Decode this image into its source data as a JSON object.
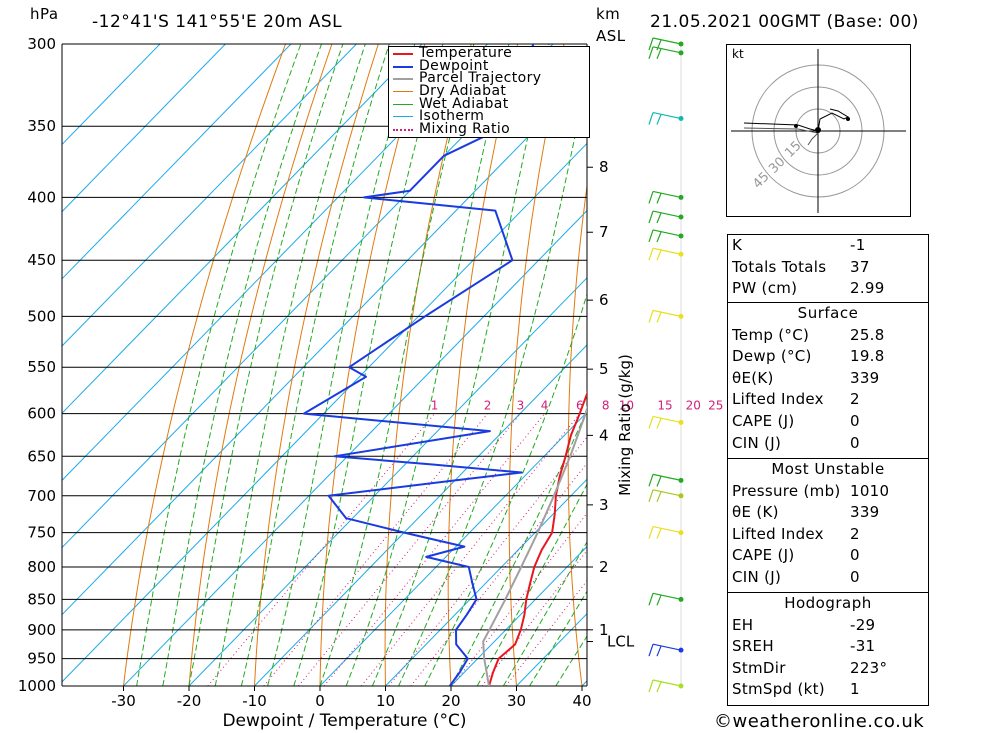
{
  "header": {
    "location": "-12°41'S 141°55'E 20m ASL",
    "datetime": "21.05.2021 00GMT (Base: 00)",
    "left_unit": "hPa",
    "right_unit_km": "km",
    "right_unit_asl": "ASL"
  },
  "footer": {
    "credit": "©weatheronline.co.uk"
  },
  "chart_data": {
    "type": "skew-t log-p",
    "xlabel": "Dewpoint / Temperature (°C)",
    "ylabel_right": "Mixing Ratio (g/kg)",
    "x_ticks": [
      -30,
      -20,
      -10,
      0,
      10,
      20,
      30,
      40
    ],
    "xlim": [
      -40,
      40
    ],
    "pressure_levels": [
      300,
      350,
      400,
      450,
      500,
      550,
      600,
      650,
      700,
      750,
      800,
      850,
      900,
      950,
      1000
    ],
    "ylim": [
      1000,
      300
    ],
    "height_ticks": [
      {
        "label": "8",
        "p": 378
      },
      {
        "label": "7",
        "p": 427
      },
      {
        "label": "6",
        "p": 485
      },
      {
        "label": "5",
        "p": 552
      },
      {
        "label": "4",
        "p": 625
      },
      {
        "label": "3",
        "p": 712
      },
      {
        "label": "2",
        "p": 800
      },
      {
        "label": "1",
        "p": 900
      }
    ],
    "lcl_label": "LCL",
    "lcl_p": 920,
    "mixing_ratio_labels": [
      "1",
      "2",
      "3",
      "4",
      "6",
      "8",
      "10",
      "15",
      "20",
      "25"
    ],
    "series": [
      {
        "name": "Temperature",
        "color": "#e8171f",
        "points": [
          [
            1000,
            25.8
          ],
          [
            975,
            24.4
          ],
          [
            950,
            23.2
          ],
          [
            925,
            23.6
          ],
          [
            900,
            22.3
          ],
          [
            875,
            20.6
          ],
          [
            850,
            18.6
          ],
          [
            825,
            16.8
          ],
          [
            800,
            15.0
          ],
          [
            775,
            13.6
          ],
          [
            750,
            12.6
          ],
          [
            725,
            10.3
          ],
          [
            700,
            7.7
          ],
          [
            675,
            5.4
          ],
          [
            650,
            3.3
          ],
          [
            625,
            1.0
          ],
          [
            600,
            -0.9
          ],
          [
            575,
            -3.0
          ],
          [
            550,
            -5.2
          ],
          [
            525,
            -7.3
          ],
          [
            500,
            -10.6
          ],
          [
            475,
            -14.5
          ],
          [
            450,
            -18.5
          ],
          [
            425,
            -23.0
          ],
          [
            400,
            -26.8
          ],
          [
            395,
            -26.9
          ],
          [
            390,
            -28.5
          ],
          [
            370,
            -32.5
          ],
          [
            350,
            -36.5
          ]
        ]
      },
      {
        "name": "Dewpoint",
        "color": "#1a3be0",
        "points": [
          [
            1000,
            19.8
          ],
          [
            975,
            19.3
          ],
          [
            950,
            18.5
          ],
          [
            925,
            14.6
          ],
          [
            900,
            12.4
          ],
          [
            875,
            11.8
          ],
          [
            850,
            11.0
          ],
          [
            825,
            8.0
          ],
          [
            800,
            5.0
          ],
          [
            785,
            -3.0
          ],
          [
            770,
            1.3
          ],
          [
            750,
            -10.0
          ],
          [
            730,
            -21.0
          ],
          [
            700,
            -27.0
          ],
          [
            680,
            -10.0
          ],
          [
            670,
            -1.0
          ],
          [
            660,
            -16.0
          ],
          [
            650,
            -32.0
          ],
          [
            620,
            -12.0
          ],
          [
            600,
            -43.0
          ],
          [
            560,
            -39.0
          ],
          [
            550,
            -43.0
          ],
          [
            500,
            -39.0
          ],
          [
            450,
            -34.0
          ],
          [
            410,
            -44.0
          ],
          [
            400,
            -66.0
          ],
          [
            395,
            -60.0
          ],
          [
            370,
            -60.0
          ],
          [
            350,
            -55.0
          ],
          [
            300,
            -63.0
          ]
        ]
      },
      {
        "name": "Parcel Trajectory",
        "color": "#a0a0a0",
        "points": [
          [
            1000,
            25.8
          ],
          [
            950,
            21.0
          ],
          [
            920,
            18.3
          ],
          [
            900,
            17.5
          ],
          [
            850,
            15.4
          ],
          [
            800,
            13.0
          ],
          [
            750,
            10.4
          ],
          [
            700,
            7.4
          ],
          [
            650,
            4.0
          ],
          [
            600,
            0.0
          ],
          [
            550,
            -4.8
          ],
          [
            500,
            -10.5
          ],
          [
            450,
            -17.5
          ],
          [
            400,
            -26.0
          ],
          [
            350,
            -36.5
          ],
          [
            310,
            -47.5
          ]
        ]
      }
    ],
    "background_lines": [
      "Dry Adiabat",
      "Wet Adiabat",
      "Isotherm",
      "Mixing Ratio"
    ]
  },
  "legend": {
    "items": [
      {
        "label": "Temperature",
        "color": "#e8171f",
        "style": "solid"
      },
      {
        "label": "Dewpoint",
        "color": "#1a3be0",
        "style": "solid"
      },
      {
        "label": "Parcel Trajectory",
        "color": "#a0a0a0",
        "style": "solid"
      },
      {
        "label": "Dry Adiabat",
        "color": "#e07a10",
        "style": "solid"
      },
      {
        "label": "Wet Adiabat",
        "color": "#22aa22",
        "style": "solid"
      },
      {
        "label": "Isotherm",
        "color": "#1eaaea",
        "style": "solid"
      },
      {
        "label": "Mixing Ratio",
        "color": "#d0207a",
        "style": "dotted"
      }
    ]
  },
  "hodograph": {
    "unit": "kt",
    "ring_labels": [
      "15",
      "30",
      "45"
    ]
  },
  "indices": {
    "general": [
      {
        "label": "K",
        "value": "-1"
      },
      {
        "label": "Totals Totals",
        "value": "37"
      },
      {
        "label": "PW (cm)",
        "value": "2.99"
      }
    ],
    "surface": {
      "title": "Surface",
      "rows": [
        {
          "label": "Temp (°C)",
          "value": "25.8"
        },
        {
          "label": "Dewp (°C)",
          "value": "19.8"
        },
        {
          "label": "θE(K)",
          "value": "339"
        },
        {
          "label": "Lifted Index",
          "value": "2"
        },
        {
          "label": "CAPE (J)",
          "value": "0"
        },
        {
          "label": "CIN (J)",
          "value": "0"
        }
      ]
    },
    "most_unstable": {
      "title": "Most Unstable",
      "rows": [
        {
          "label": "Pressure (mb)",
          "value": "1010"
        },
        {
          "label": "θE (K)",
          "value": "339"
        },
        {
          "label": "Lifted Index",
          "value": "2"
        },
        {
          "label": "CAPE (J)",
          "value": "0"
        },
        {
          "label": "CIN (J)",
          "value": "0"
        }
      ]
    },
    "hodograph": {
      "title": "Hodograph",
      "rows": [
        {
          "label": "EH",
          "value": "-29"
        },
        {
          "label": "SREH",
          "value": "-31"
        },
        {
          "label": "StmDir",
          "value": "223°"
        },
        {
          "label": "StmSpd (kt)",
          "value": "1"
        }
      ]
    }
  },
  "wind_barbs": [
    {
      "p": 300,
      "color": "#22aa22"
    },
    {
      "p": 305,
      "color": "#22aa22"
    },
    {
      "p": 345,
      "color": "#10b8b0"
    },
    {
      "p": 400,
      "color": "#22aa22"
    },
    {
      "p": 415,
      "color": "#22aa22"
    },
    {
      "p": 430,
      "color": "#22aa22"
    },
    {
      "p": 445,
      "color": "#e8e020"
    },
    {
      "p": 500,
      "color": "#e8e020"
    },
    {
      "p": 610,
      "color": "#e8e020"
    },
    {
      "p": 680,
      "color": "#22aa22"
    },
    {
      "p": 700,
      "color": "#a8c820"
    },
    {
      "p": 750,
      "color": "#e8e020"
    },
    {
      "p": 850,
      "color": "#22aa22"
    },
    {
      "p": 935,
      "color": "#1a3be0"
    },
    {
      "p": 1000,
      "color": "#a8e020"
    }
  ]
}
